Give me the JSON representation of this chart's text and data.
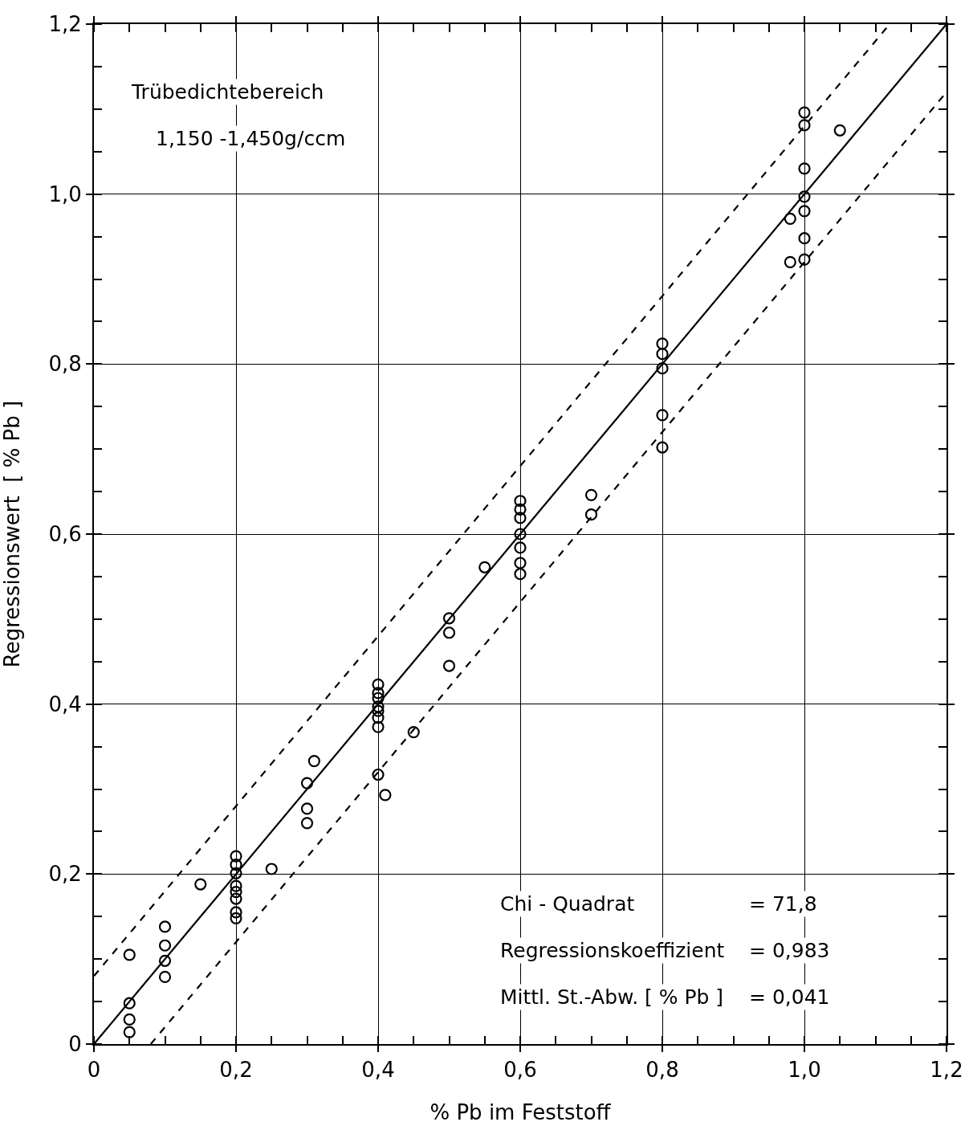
{
  "chart_data": {
    "type": "scatter",
    "xlabel": "% Pb im Feststoff",
    "ylabel": "Regressionswert  [ % Pb ]",
    "xlim": [
      0,
      1.2
    ],
    "ylim": [
      0,
      1.2
    ],
    "xticks": [
      0,
      {
        "value": 0.2,
        "label": "0,2"
      },
      {
        "value": 0.4,
        "label": "0,4"
      },
      {
        "value": 0.6,
        "label": "0,6"
      },
      {
        "value": 0.8,
        "label": "0,8"
      },
      {
        "value": 1.0,
        "label": "1,0"
      },
      {
        "value": 1.2,
        "label": "1,2"
      }
    ],
    "yticks": [
      0,
      {
        "value": 0.2,
        "label": "0,2"
      },
      {
        "value": 0.4,
        "label": "0,4"
      },
      {
        "value": 0.6,
        "label": "0,6"
      },
      {
        "value": 0.8,
        "label": "0,8"
      },
      {
        "value": 1.0,
        "label": "1,0"
      },
      {
        "value": 1.2,
        "label": "1,2"
      }
    ],
    "grid": true,
    "marker": "circle",
    "series": [
      {
        "color": "#000000",
        "x": [
          0.05,
          0.05,
          0.05,
          0.05,
          0.1,
          0.1,
          0.1,
          0.1,
          0.15,
          0.2,
          0.2,
          0.2,
          0.2,
          0.2,
          0.2,
          0.2,
          0.2,
          0.25,
          0.3,
          0.3,
          0.3,
          0.31,
          0.4,
          0.4,
          0.4,
          0.4,
          0.4,
          0.4,
          0.4,
          0.4,
          0.41,
          0.45,
          0.5,
          0.5,
          0.5,
          0.55,
          0.6,
          0.6,
          0.6,
          0.6,
          0.6,
          0.6,
          0.6,
          0.7,
          0.7,
          0.8,
          0.8,
          0.8,
          0.8,
          0.8,
          0.98,
          0.98,
          1.0,
          1.0,
          1.0,
          1.0,
          1.0,
          1.0,
          1.0,
          1.05
        ],
        "values": [
          0.105,
          0.048,
          0.029,
          0.014,
          0.138,
          0.116,
          0.098,
          0.079,
          0.188,
          0.221,
          0.211,
          0.201,
          0.186,
          0.179,
          0.171,
          0.155,
          0.148,
          0.206,
          0.307,
          0.277,
          0.26,
          0.333,
          0.423,
          0.413,
          0.407,
          0.397,
          0.384,
          0.373,
          0.392,
          0.317,
          0.293,
          0.367,
          0.501,
          0.484,
          0.445,
          0.561,
          0.639,
          0.629,
          0.619,
          0.6,
          0.584,
          0.566,
          0.553,
          0.646,
          0.623,
          0.824,
          0.812,
          0.795,
          0.74,
          0.702,
          0.971,
          0.92,
          1.096,
          1.081,
          1.03,
          0.997,
          0.98,
          0.948,
          0.923,
          1.075
        ]
      },
      {
        "type": "line",
        "color": "#000000",
        "line_style": "solid",
        "marker": "none",
        "x": [
          0,
          1.2
        ],
        "values": [
          0,
          1.2
        ]
      },
      {
        "type": "line",
        "color": "#000000",
        "line_style": "dashed",
        "marker": "none",
        "x": [
          0,
          1.12
        ],
        "values": [
          0.08,
          1.2
        ]
      },
      {
        "type": "line",
        "color": "#000000",
        "line_style": "dashed",
        "marker": "none",
        "x": [
          0.08,
          1.2
        ],
        "values": [
          0,
          1.12
        ]
      }
    ],
    "annotations": [
      "Trübedichtebereich",
      "1,150 -1,450g/ccm",
      "Chi - Quadrat",
      "= 71,8",
      "Regressionskoeffizient",
      "= 0,983",
      "Mittl. St.-Abw. [ % Pb ]",
      "= 0,041"
    ]
  }
}
